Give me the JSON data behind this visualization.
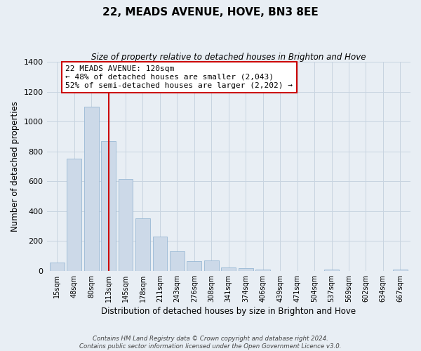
{
  "title": "22, MEADS AVENUE, HOVE, BN3 8EE",
  "subtitle": "Size of property relative to detached houses in Brighton and Hove",
  "xlabel": "Distribution of detached houses by size in Brighton and Hove",
  "ylabel": "Number of detached properties",
  "bar_labels": [
    "15sqm",
    "48sqm",
    "80sqm",
    "113sqm",
    "145sqm",
    "178sqm",
    "211sqm",
    "243sqm",
    "276sqm",
    "308sqm",
    "341sqm",
    "374sqm",
    "406sqm",
    "439sqm",
    "471sqm",
    "504sqm",
    "537sqm",
    "569sqm",
    "602sqm",
    "634sqm",
    "667sqm"
  ],
  "bar_values": [
    55,
    750,
    1100,
    870,
    615,
    350,
    230,
    130,
    65,
    70,
    25,
    20,
    8,
    0,
    0,
    0,
    10,
    0,
    0,
    0,
    10
  ],
  "bar_color": "#ccd9e8",
  "bar_edge_color": "#99b8d4",
  "vline_x_index": 3,
  "vline_color": "#cc0000",
  "annotation_text": "22 MEADS AVENUE: 120sqm\n← 48% of detached houses are smaller (2,043)\n52% of semi-detached houses are larger (2,202) →",
  "annotation_box_color": "white",
  "annotation_box_edge_color": "#cc0000",
  "ylim": [
    0,
    1400
  ],
  "yticks": [
    0,
    200,
    400,
    600,
    800,
    1000,
    1200,
    1400
  ],
  "footer_text": "Contains HM Land Registry data © Crown copyright and database right 2024.\nContains public sector information licensed under the Open Government Licence v3.0.",
  "bg_color": "#e8eef4",
  "grid_color": "#c8d4e0"
}
